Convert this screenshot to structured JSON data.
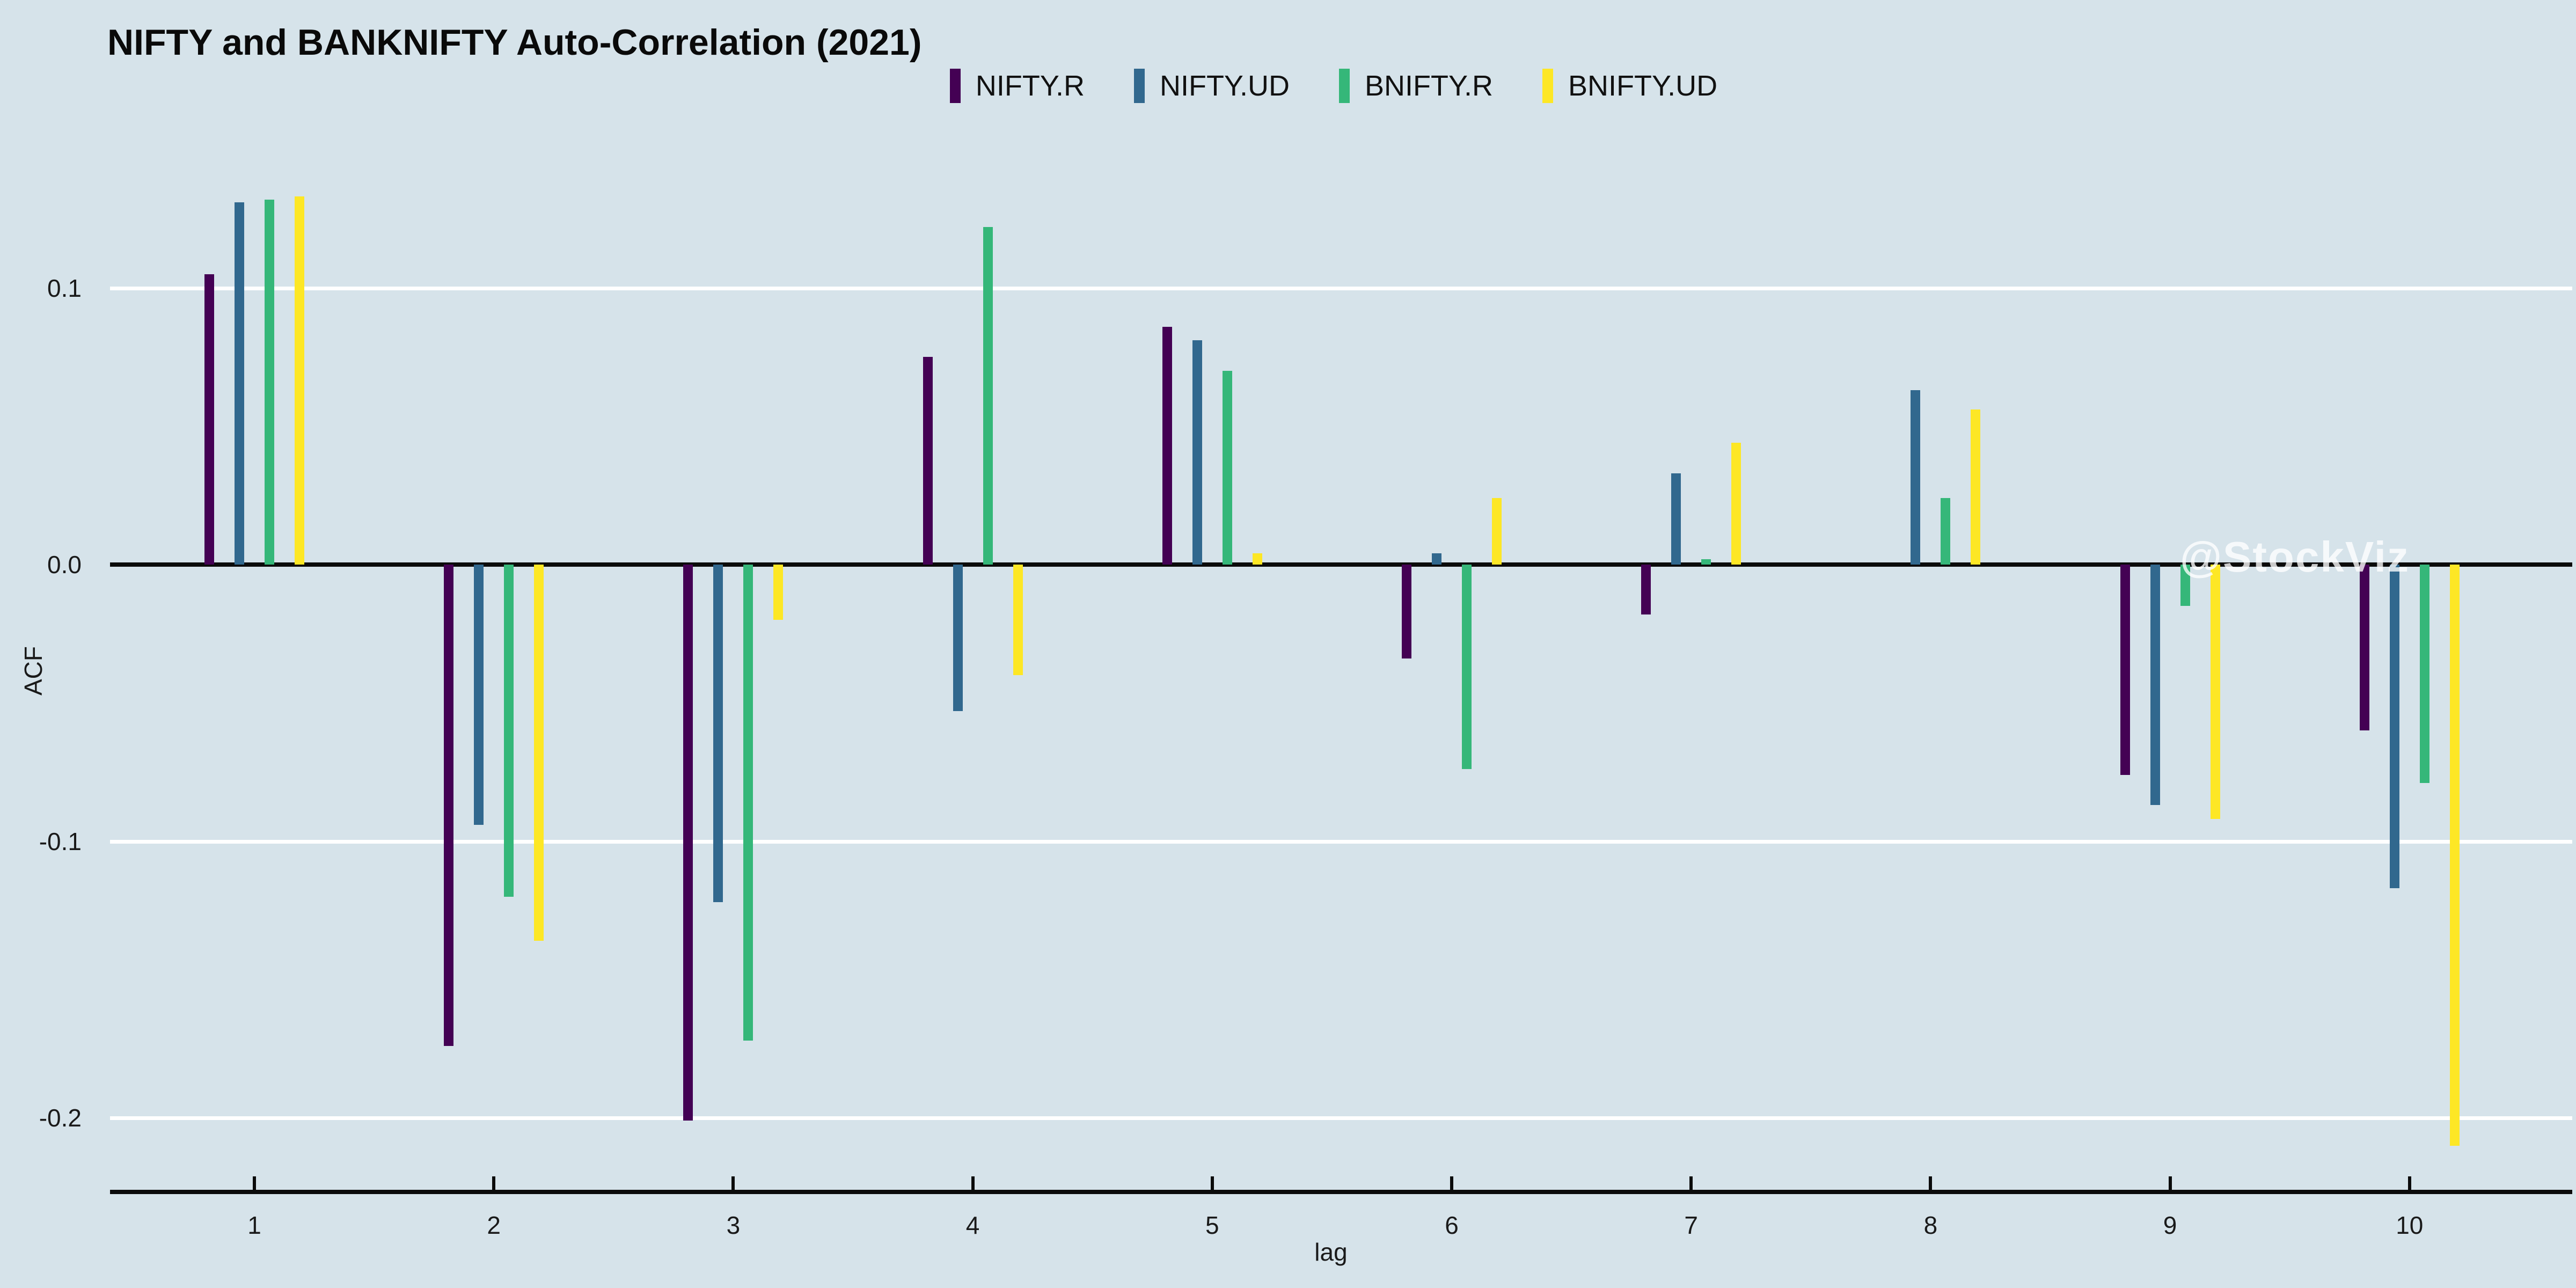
{
  "page": {
    "background_color": "#d6e3ea",
    "axis_color": "#0b0b0b",
    "gridline_color": "#ffffff"
  },
  "chart_data": {
    "type": "bar",
    "title": "NIFTY and BANKNIFTY Auto-Correlation (2021)",
    "xlabel": "lag",
    "ylabel": "ACF",
    "watermark": "@StockViz",
    "legend_position": "top-center",
    "grid": "horizontal white lines at 0.1, -0.1, -0.2; black zero line",
    "ylim": [
      -0.225,
      0.14
    ],
    "gridline_values": [
      0.1,
      -0.1,
      -0.2
    ],
    "y_ticks": [
      {
        "label": "0.1",
        "value": 0.1
      },
      {
        "label": "0.0",
        "value": 0.0
      },
      {
        "label": "-0.1",
        "value": -0.1
      },
      {
        "label": "-0.2",
        "value": -0.2
      }
    ],
    "categories": [
      "1",
      "2",
      "3",
      "4",
      "5",
      "6",
      "7",
      "8",
      "9",
      "10"
    ],
    "series": [
      {
        "name": "NIFTY.R",
        "color": "#440154",
        "values": [
          0.105,
          -0.174,
          -0.201,
          0.075,
          0.086,
          -0.034,
          -0.018,
          0.0,
          -0.076,
          -0.06
        ]
      },
      {
        "name": "NIFTY.UD",
        "color": "#31688e",
        "values": [
          0.131,
          -0.094,
          -0.122,
          -0.053,
          0.081,
          0.004,
          0.033,
          0.063,
          -0.087,
          -0.117
        ]
      },
      {
        "name": "BNIFTY.R",
        "color": "#35b779",
        "values": [
          0.132,
          -0.12,
          -0.172,
          0.122,
          0.07,
          -0.074,
          0.002,
          0.024,
          -0.015,
          -0.079
        ]
      },
      {
        "name": "BNIFTY.UD",
        "color": "#fde725",
        "values": [
          0.133,
          -0.136,
          -0.02,
          -0.04,
          0.004,
          0.024,
          0.044,
          0.056,
          -0.092,
          -0.21
        ]
      }
    ]
  }
}
